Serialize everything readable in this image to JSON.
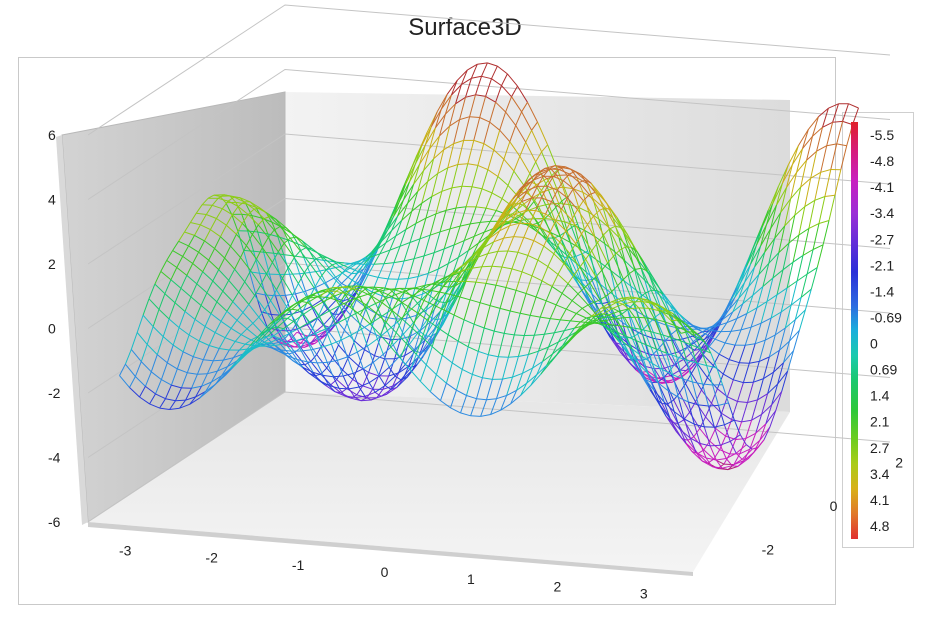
{
  "chart_data": {
    "type": "surface3d",
    "title": "Surface3D",
    "render": "wireframe",
    "x_ticks": [
      "-3",
      "-2",
      "-1",
      "0",
      "1",
      "2",
      "3"
    ],
    "y_ticks": [
      "-2",
      "0",
      "2"
    ],
    "z_ticks": [
      "6",
      "4",
      "2",
      "0",
      "-2",
      "-4",
      "-6"
    ],
    "xlim": [
      -3.5,
      3.5
    ],
    "ylim": [
      -3,
      3
    ],
    "zlim": [
      -6,
      6
    ],
    "grid": true,
    "legend": {
      "position": "right",
      "labels": [
        "-5.5",
        "-4.8",
        "-4.1",
        "-3.4",
        "-2.7",
        "-2.1",
        "-1.4",
        "-0.69",
        "0",
        "0.69",
        "1.4",
        "2.1",
        "2.7",
        "3.4",
        "4.1",
        "4.8"
      ],
      "colors": [
        "#e0202a",
        "#d61c7c",
        "#c81fbf",
        "#9a2ed6",
        "#5a2ed8",
        "#2a2fd8",
        "#2d6be0",
        "#1aaedc",
        "#1acaae",
        "#1ac86e",
        "#2cc83a",
        "#6ccc20",
        "#aacc18",
        "#d8b018",
        "#e0782a",
        "#e03030"
      ]
    }
  }
}
